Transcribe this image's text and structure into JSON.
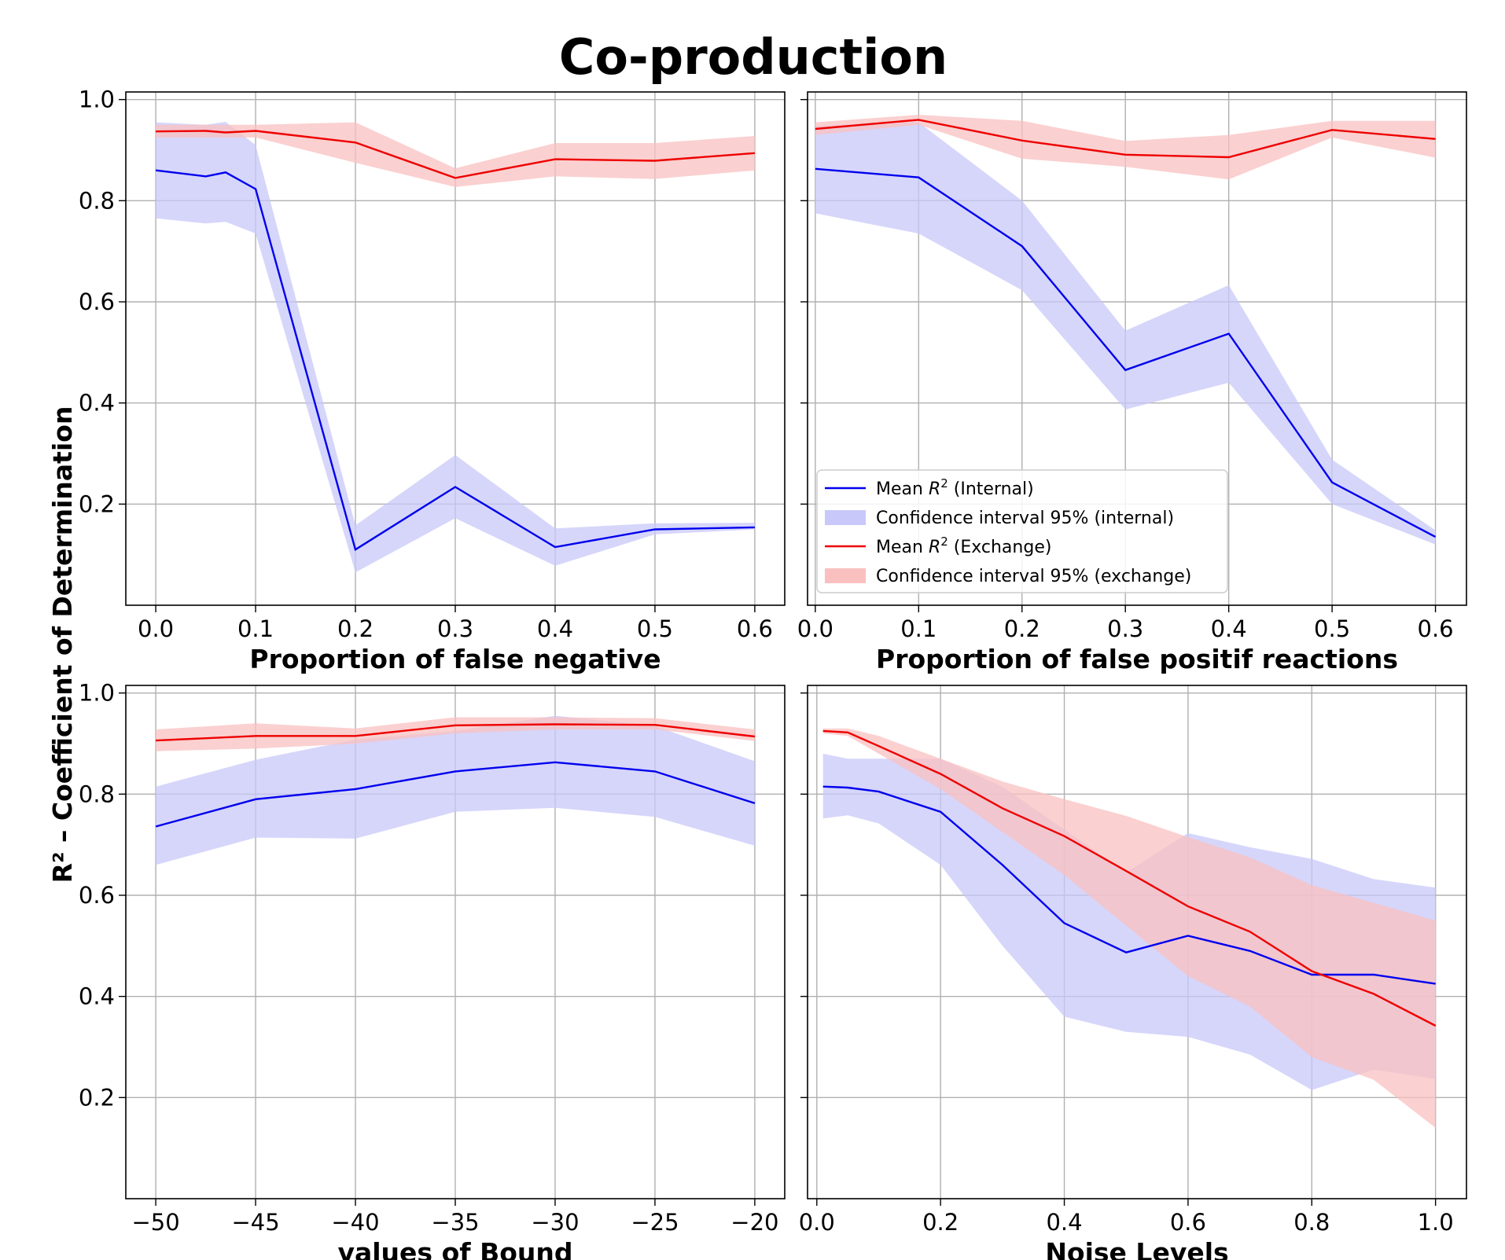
{
  "figure": {
    "title": "Co-production",
    "ylabel": "R² – Coefficient of Determination",
    "colors": {
      "internal": "#0000ee",
      "internal_fill": "#c8c8fa",
      "exchange": "#ee0000",
      "exchange_fill": "#fac0c0"
    },
    "legend": {
      "placement": "lower-left of top-right panel",
      "entries": [
        {
          "series": "internal_mean",
          "label_prefix": "Mean ",
          "label_symbol": "R",
          "label_sup": "2",
          "label_suffix": " (Internal)"
        },
        {
          "series": "internal_ci",
          "label": "Confidence interval 95% (internal)"
        },
        {
          "series": "exchange_mean",
          "label_prefix": "Mean ",
          "label_symbol": "R",
          "label_sup": "2",
          "label_suffix": " (Exchange)"
        },
        {
          "series": "exchange_ci",
          "label": "Confidence interval 95% (exchange)"
        }
      ]
    }
  },
  "chart_data": [
    {
      "type": "line",
      "xlabel": "Proportion of false negative",
      "xlim": [
        -0.03,
        0.63
      ],
      "ylim": [
        0.0,
        1.015
      ],
      "xticks": [
        0.0,
        0.1,
        0.2,
        0.3,
        0.4,
        0.5,
        0.6
      ],
      "xtick_labels": [
        "0.0",
        "0.1",
        "0.2",
        "0.3",
        "0.4",
        "0.5",
        "0.6"
      ],
      "yticks": [
        0.2,
        0.4,
        0.6,
        0.8,
        1.0
      ],
      "ytick_labels": [
        "0.2",
        "0.4",
        "0.6",
        "0.8",
        "1.0"
      ],
      "grid": true,
      "x": [
        0.0,
        0.05,
        0.07,
        0.1,
        0.2,
        0.3,
        0.4,
        0.5,
        0.6
      ],
      "series": [
        {
          "name": "internal",
          "mean": [
            0.86,
            0.848,
            0.856,
            0.823,
            0.11,
            0.234,
            0.115,
            0.15,
            0.154
          ],
          "ci_low": [
            0.765,
            0.755,
            0.758,
            0.735,
            0.065,
            0.172,
            0.078,
            0.14,
            0.15
          ],
          "ci_high": [
            0.955,
            0.95,
            0.956,
            0.91,
            0.158,
            0.297,
            0.152,
            0.162,
            0.163
          ]
        },
        {
          "name": "exchange",
          "mean": [
            0.937,
            0.938,
            0.935,
            0.938,
            0.915,
            0.845,
            0.882,
            0.879,
            0.894
          ],
          "ci_low": [
            0.925,
            0.925,
            0.925,
            0.925,
            0.875,
            0.827,
            0.848,
            0.843,
            0.86
          ],
          "ci_high": [
            0.95,
            0.95,
            0.95,
            0.95,
            0.955,
            0.864,
            0.914,
            0.914,
            0.928
          ]
        }
      ]
    },
    {
      "type": "line",
      "xlabel": "Proportion of false positif reactions",
      "xlim": [
        -0.0075,
        0.63
      ],
      "ylim": [
        0.0,
        1.015
      ],
      "xticks": [
        0.0,
        0.1,
        0.2,
        0.3,
        0.4,
        0.5,
        0.6
      ],
      "xtick_labels": [
        "0.0",
        "0.1",
        "0.2",
        "0.3",
        "0.4",
        "0.5",
        "0.6"
      ],
      "yticks": [
        0.2,
        0.4,
        0.6,
        0.8,
        1.0
      ],
      "ytick_labels": [],
      "grid": true,
      "x": [
        0.0,
        0.1,
        0.2,
        0.3,
        0.4,
        0.5,
        0.6
      ],
      "series": [
        {
          "name": "internal",
          "mean": [
            0.863,
            0.846,
            0.71,
            0.465,
            0.537,
            0.243,
            0.135
          ],
          "ci_low": [
            0.775,
            0.735,
            0.623,
            0.387,
            0.44,
            0.2,
            0.12
          ],
          "ci_high": [
            0.948,
            0.955,
            0.8,
            0.543,
            0.633,
            0.288,
            0.148
          ]
        },
        {
          "name": "exchange",
          "mean": [
            0.942,
            0.96,
            0.919,
            0.891,
            0.886,
            0.94,
            0.922
          ],
          "ci_low": [
            0.93,
            0.95,
            0.883,
            0.867,
            0.842,
            0.925,
            0.885
          ],
          "ci_high": [
            0.955,
            0.97,
            0.958,
            0.918,
            0.93,
            0.958,
            0.958
          ]
        }
      ]
    },
    {
      "type": "line",
      "xlabel": "values of Bound",
      "xlim": [
        -51.5,
        -18.5
      ],
      "ylim": [
        0.0,
        1.015
      ],
      "xticks": [
        -50,
        -45,
        -40,
        -35,
        -30,
        -25,
        -20
      ],
      "xtick_labels": [
        "−50",
        "−45",
        "−40",
        "−35",
        "−30",
        "−25",
        "−20"
      ],
      "yticks": [
        0.2,
        0.4,
        0.6,
        0.8,
        1.0
      ],
      "ytick_labels": [
        "0.2",
        "0.4",
        "0.6",
        "0.8",
        "1.0"
      ],
      "grid": true,
      "x": [
        -50,
        -45,
        -40,
        -35,
        -30,
        -25,
        -20
      ],
      "series": [
        {
          "name": "internal",
          "mean": [
            0.736,
            0.79,
            0.81,
            0.845,
            0.863,
            0.845,
            0.782
          ],
          "ci_low": [
            0.66,
            0.714,
            0.712,
            0.765,
            0.773,
            0.755,
            0.698
          ],
          "ci_high": [
            0.815,
            0.868,
            0.908,
            0.925,
            0.955,
            0.935,
            0.865
          ]
        },
        {
          "name": "exchange",
          "mean": [
            0.906,
            0.915,
            0.915,
            0.936,
            0.938,
            0.937,
            0.914
          ],
          "ci_low": [
            0.885,
            0.89,
            0.9,
            0.92,
            0.928,
            0.928,
            0.905
          ],
          "ci_high": [
            0.928,
            0.94,
            0.93,
            0.952,
            0.952,
            0.95,
            0.928
          ]
        }
      ]
    },
    {
      "type": "line",
      "xlabel": "Noise Levels",
      "xlim": [
        -0.015,
        1.05
      ],
      "ylim": [
        0.0,
        1.015
      ],
      "xticks": [
        0.0,
        0.2,
        0.4,
        0.6,
        0.8,
        1.0
      ],
      "xtick_labels": [
        "0.0",
        "0.2",
        "0.4",
        "0.6",
        "0.8",
        "1.0"
      ],
      "yticks": [
        0.2,
        0.4,
        0.6,
        0.8,
        1.0
      ],
      "ytick_labels": [],
      "grid": true,
      "x": [
        0.01,
        0.05,
        0.1,
        0.2,
        0.3,
        0.4,
        0.5,
        0.6,
        0.7,
        0.8,
        0.9,
        1.0
      ],
      "series": [
        {
          "name": "internal",
          "mean": [
            0.815,
            0.813,
            0.805,
            0.765,
            0.66,
            0.545,
            0.487,
            0.52,
            0.49,
            0.443,
            0.443,
            0.425
          ],
          "ci_low": [
            0.752,
            0.758,
            0.742,
            0.66,
            0.5,
            0.36,
            0.33,
            0.32,
            0.285,
            0.215,
            0.255,
            0.237
          ],
          "ci_high": [
            0.88,
            0.87,
            0.87,
            0.87,
            0.815,
            0.73,
            0.645,
            0.723,
            0.695,
            0.672,
            0.632,
            0.615
          ]
        },
        {
          "name": "exchange",
          "mean": [
            0.925,
            0.922,
            0.895,
            0.84,
            0.772,
            0.717,
            0.648,
            0.578,
            0.528,
            0.45,
            0.405,
            0.342
          ],
          "ci_low": [
            0.92,
            0.915,
            0.88,
            0.81,
            0.725,
            0.64,
            0.54,
            0.44,
            0.38,
            0.28,
            0.235,
            0.14
          ],
          "ci_high": [
            0.93,
            0.93,
            0.915,
            0.87,
            0.825,
            0.79,
            0.757,
            0.715,
            0.675,
            0.62,
            0.585,
            0.55
          ]
        }
      ]
    }
  ]
}
